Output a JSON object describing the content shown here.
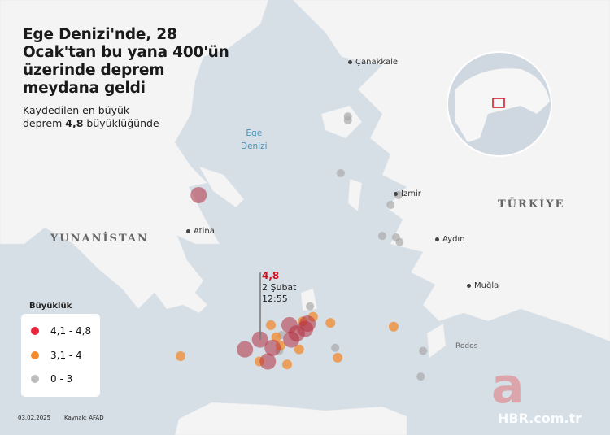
{
  "title": "Ege Denizi'nde, 28 Ocak'tan bu yana 400'ün üzerinde deprem meydana geldi",
  "subtitle_line1": "Kaydedilen en büyük",
  "subtitle_pre": "deprem ",
  "subtitle_bold": "4,8",
  "subtitle_post": " büyüklüğünde",
  "places": {
    "canakkale": "Çanakkale",
    "izmir": "İzmir",
    "aydin": "Aydın",
    "mugla": "Muğla",
    "atina": "Atina",
    "rodos": "Rodos"
  },
  "countries": {
    "turkiye": "TÜRKİYE",
    "yunanistan": "YUNANİSTAN"
  },
  "sea": {
    "line1": "Ege",
    "line2": "Denizi"
  },
  "annotation": {
    "magnitude": "4,8",
    "date": "2 Şubat",
    "time": "12:55"
  },
  "legend": {
    "title": "Büyüklük",
    "items": [
      {
        "label": "4,1 - 4,8",
        "color": "#e8243f"
      },
      {
        "label": "3,1 - 4",
        "color": "#f28a2e"
      },
      {
        "label": "0 - 3",
        "color": "#bdbdbd"
      }
    ]
  },
  "footer": {
    "date": "03.02.2025",
    "source": "Kaynak: AFAD"
  },
  "watermark": "a HBR.com.tr",
  "colors": {
    "sea": "#d6dee6",
    "land": "#f4f4f4",
    "strong": "#b5303f",
    "medium": "#f28a2e",
    "weak": "#a9a9a9"
  },
  "quakes": [
    {
      "lon": 23.85,
      "lat": 38.4,
      "class": "strong"
    },
    {
      "lon": 24.87,
      "lat": 36.49,
      "class": "strong"
    },
    {
      "lon": 24.62,
      "lat": 36.36,
      "class": "strong"
    },
    {
      "lon": 25.08,
      "lat": 36.38,
      "class": "strong"
    },
    {
      "lon": 25.0,
      "lat": 36.2,
      "class": "strong"
    },
    {
      "lon": 25.36,
      "lat": 36.68,
      "class": "strong"
    },
    {
      "lon": 25.39,
      "lat": 36.49,
      "class": "strong"
    },
    {
      "lon": 25.62,
      "lat": 36.63,
      "class": "strong"
    },
    {
      "lon": 25.66,
      "lat": 36.7,
      "class": "strong"
    },
    {
      "lon": 25.48,
      "lat": 36.57,
      "class": "strong"
    },
    {
      "lon": 23.55,
      "lat": 36.27,
      "class": "medium"
    },
    {
      "lon": 25.05,
      "lat": 36.68,
      "class": "medium"
    },
    {
      "lon": 26.04,
      "lat": 36.71,
      "class": "medium"
    },
    {
      "lon": 26.16,
      "lat": 36.25,
      "class": "medium"
    },
    {
      "lon": 27.09,
      "lat": 36.66,
      "class": "medium"
    },
    {
      "lon": 25.32,
      "lat": 36.16,
      "class": "medium"
    },
    {
      "lon": 24.86,
      "lat": 36.2,
      "class": "medium"
    },
    {
      "lon": 25.21,
      "lat": 36.41,
      "class": "medium"
    },
    {
      "lon": 25.75,
      "lat": 36.79,
      "class": "medium"
    },
    {
      "lon": 25.52,
      "lat": 36.36,
      "class": "medium"
    },
    {
      "lon": 25.14,
      "lat": 36.52,
      "class": "medium"
    },
    {
      "lon": 25.58,
      "lat": 36.73,
      "class": "medium"
    },
    {
      "lon": 26.33,
      "lat": 39.44,
      "class": "weak"
    },
    {
      "lon": 26.33,
      "lat": 39.39,
      "class": "weak"
    },
    {
      "lon": 26.21,
      "lat": 38.69,
      "class": "weak"
    },
    {
      "lon": 27.13,
      "lat": 37.84,
      "class": "weak"
    },
    {
      "lon": 27.19,
      "lat": 37.78,
      "class": "weak"
    },
    {
      "lon": 26.9,
      "lat": 37.86,
      "class": "weak"
    },
    {
      "lon": 27.04,
      "lat": 38.27,
      "class": "weak"
    },
    {
      "lon": 27.54,
      "lat": 36.0,
      "class": "weak"
    },
    {
      "lon": 25.7,
      "lat": 36.93,
      "class": "weak"
    },
    {
      "lon": 25.23,
      "lat": 36.55,
      "class": "weak"
    },
    {
      "lon": 26.12,
      "lat": 36.38,
      "class": "weak"
    },
    {
      "lon": 27.58,
      "lat": 36.34,
      "class": "weak"
    },
    {
      "lon": 25.19,
      "lat": 36.34,
      "class": "weak"
    },
    {
      "lon": 27.17,
      "lat": 38.4,
      "class": "weak"
    }
  ]
}
